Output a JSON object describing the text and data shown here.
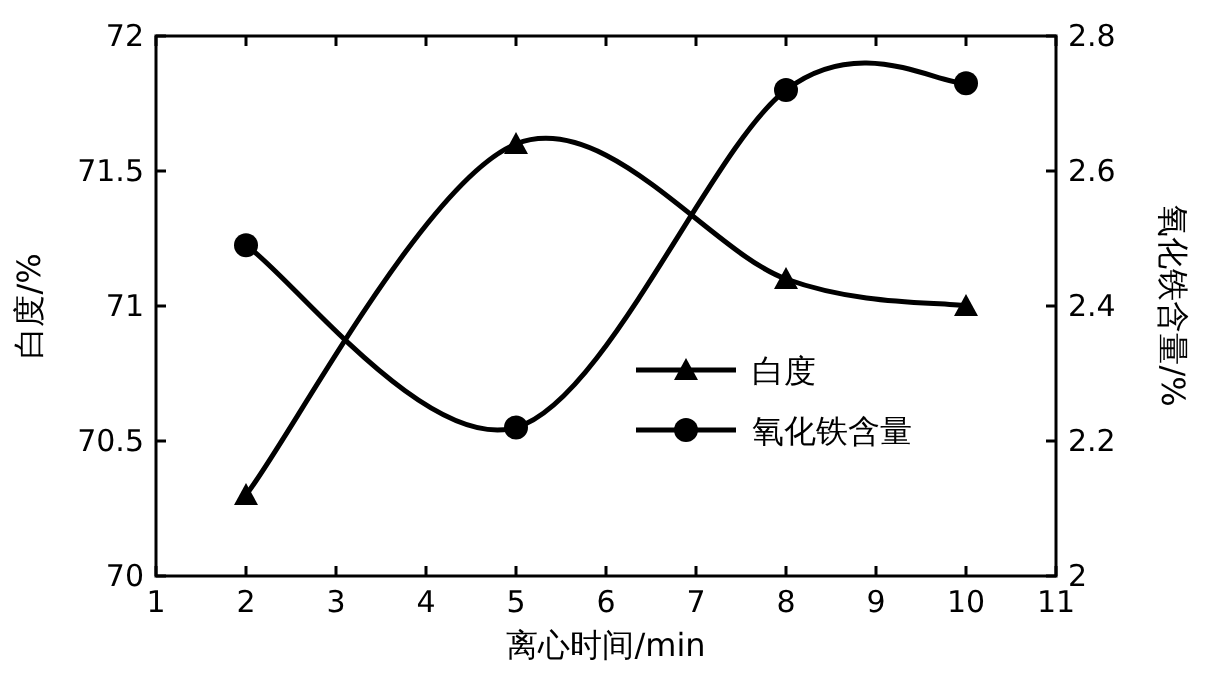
{
  "chart_data": {
    "type": "line",
    "xlabel": "离心时间/min",
    "ylabel": "白度/%",
    "y2label": "氧化铁含量/%",
    "x": [
      2,
      5,
      8,
      10
    ],
    "xlim": [
      1,
      11
    ],
    "xticks": [
      1,
      2,
      3,
      4,
      5,
      6,
      7,
      8,
      9,
      10,
      11
    ],
    "ylim": [
      70,
      72
    ],
    "yticks": [
      70,
      70.5,
      71,
      71.5,
      72
    ],
    "y2lim": [
      2,
      2.8
    ],
    "y2ticks": [
      2,
      2.2,
      2.4,
      2.6,
      2.8
    ],
    "legend": "right",
    "grid": false,
    "series": [
      {
        "name": "白度",
        "color": "#000000",
        "marker": "triangle",
        "values": [
          70.3,
          71.6,
          71.1,
          71.0
        ]
      },
      {
        "name": "氧化铁含量",
        "color": "#000000",
        "marker": "circle",
        "axis": "y2",
        "values": [
          2.49,
          2.22,
          2.72,
          2.73
        ]
      }
    ]
  }
}
